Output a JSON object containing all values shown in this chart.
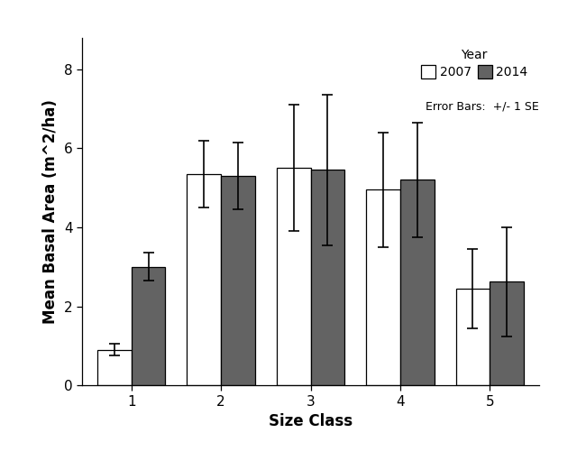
{
  "categories": [
    1,
    2,
    3,
    4,
    5
  ],
  "values_2007": [
    0.9,
    5.35,
    5.5,
    4.95,
    2.45
  ],
  "values_2014": [
    3.0,
    5.3,
    5.45,
    5.2,
    2.62
  ],
  "errors_2007": [
    0.15,
    0.85,
    1.6,
    1.45,
    1.0
  ],
  "errors_2014": [
    0.35,
    0.85,
    1.9,
    1.45,
    1.38
  ],
  "bar_color_2007": "#ffffff",
  "bar_color_2014": "#636363",
  "bar_edgecolor": "#000000",
  "bar_width": 0.38,
  "xlabel": "Size Class",
  "ylabel": "Mean Basal Area (m^2/ha)",
  "ylim": [
    0,
    8.8
  ],
  "yticks": [
    0,
    2,
    4,
    6,
    8
  ],
  "legend_title": "Year",
  "legend_labels": [
    "2007",
    "2014"
  ],
  "legend_note": "Error Bars:  +/- 1 SE",
  "background_color": "#ffffff",
  "capsize": 4,
  "elinewidth": 1.2,
  "ecolor": "#000000"
}
